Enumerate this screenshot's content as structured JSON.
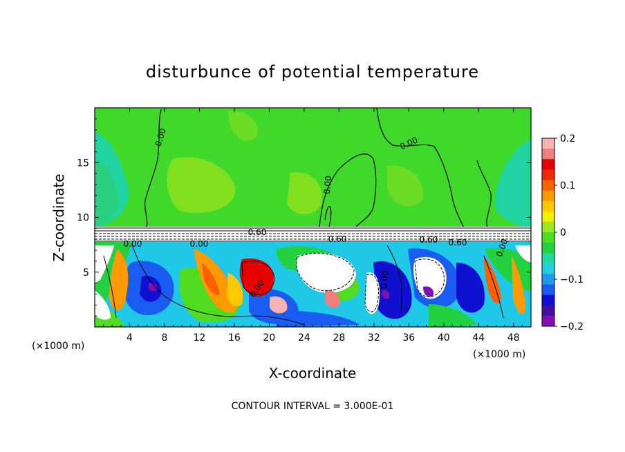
{
  "chart_data": {
    "type": "heatmap",
    "title": "disturbunce of potential temperature",
    "xlabel": "X-coordinate",
    "ylabel": "Z-coordinate",
    "x_unit_left": "(×1000 m)",
    "x_unit_right": "(×1000 m)",
    "footer": "CONTOUR INTERVAL = 3.000E-01",
    "xlim": [
      0,
      50
    ],
    "ylim": [
      0,
      20
    ],
    "x_ticks": [
      4,
      8,
      12,
      16,
      20,
      24,
      28,
      32,
      36,
      40,
      44,
      48
    ],
    "y_ticks": [
      5,
      10,
      15
    ],
    "colorbar": {
      "range": [
        -0.2,
        0.2
      ],
      "tick_labels": [
        "0.2",
        "0.1",
        "0",
        "−0.1",
        "−0.2"
      ],
      "tick_values": [
        0.2,
        0.1,
        0,
        -0.1,
        -0.2
      ],
      "colors": [
        "#f6b3b3",
        "#f08080",
        "#e60000",
        "#f02a00",
        "#ff6000",
        "#ff9a00",
        "#ffc800",
        "#f0f000",
        "#a0e620",
        "#50dc20",
        "#22d040",
        "#20d8a0",
        "#20d0e0",
        "#2098f0",
        "#1a5cf0",
        "#1010d0",
        "#4010a0",
        "#8010b0"
      ]
    },
    "contour_labels": [
      "0.00",
      "0.00",
      "0.00",
      "0.00",
      "0.00",
      "0.60",
      "0.60",
      "0.60",
      "0.60",
      "0.00",
      "0.00",
      "0.00"
    ]
  }
}
